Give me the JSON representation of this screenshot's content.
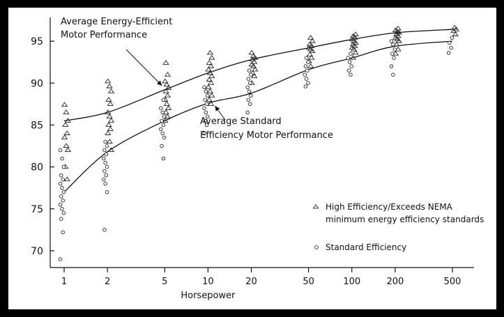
{
  "chart_data": {
    "type": "scatter",
    "title": "",
    "xlabel": "Horsepower",
    "ylabel": "",
    "x_scale": "log",
    "x_ticks": [
      1,
      2,
      5,
      10,
      20,
      50,
      100,
      200,
      500
    ],
    "x_tick_labels": [
      "1",
      "2",
      "5",
      "10",
      "20",
      "50",
      "100",
      "200",
      "500"
    ],
    "y_ticks": [
      70,
      75,
      80,
      85,
      90,
      95
    ],
    "y_tick_labels": [
      "70",
      "75",
      "80",
      "85",
      "90",
      "95"
    ],
    "ylim": [
      68,
      97.5
    ],
    "grid": false,
    "legend_position": "right-middle",
    "series": [
      {
        "name": "High Efficiency/Exceeds NEMA minimum energy efficiency standards",
        "marker": "triangle",
        "points": [
          [
            1,
            87.4
          ],
          [
            1,
            86.5
          ],
          [
            1,
            85.5
          ],
          [
            1,
            85.0
          ],
          [
            1,
            84.0
          ],
          [
            1,
            83.5
          ],
          [
            1,
            82.5
          ],
          [
            1,
            82.0
          ],
          [
            1,
            80.0
          ],
          [
            1,
            78.5
          ],
          [
            2,
            90.2
          ],
          [
            2,
            89.6
          ],
          [
            2,
            89.0
          ],
          [
            2,
            88.0
          ],
          [
            2,
            87.5
          ],
          [
            2,
            86.5
          ],
          [
            2,
            86.0
          ],
          [
            2,
            85.5
          ],
          [
            2,
            85.0
          ],
          [
            2,
            84.5
          ],
          [
            2,
            84.0
          ],
          [
            2,
            83.0
          ],
          [
            2,
            82.0
          ],
          [
            5,
            92.4
          ],
          [
            5,
            91.0
          ],
          [
            5,
            90.2
          ],
          [
            5,
            89.8
          ],
          [
            5,
            89.4
          ],
          [
            5,
            89.0
          ],
          [
            5,
            88.5
          ],
          [
            5,
            88.0
          ],
          [
            5,
            87.5
          ],
          [
            5,
            87.0
          ],
          [
            5,
            86.5
          ],
          [
            5,
            86.0
          ],
          [
            5,
            85.5
          ],
          [
            10,
            93.6
          ],
          [
            10,
            93.0
          ],
          [
            10,
            92.4
          ],
          [
            10,
            92.0
          ],
          [
            10,
            91.6
          ],
          [
            10,
            91.2
          ],
          [
            10,
            90.8
          ],
          [
            10,
            90.4
          ],
          [
            10,
            90.0
          ],
          [
            10,
            89.5
          ],
          [
            10,
            89.0
          ],
          [
            10,
            88.5
          ],
          [
            10,
            88.0
          ],
          [
            10,
            87.5
          ],
          [
            20,
            93.6
          ],
          [
            20,
            93.2
          ],
          [
            20,
            93.0
          ],
          [
            20,
            92.8
          ],
          [
            20,
            92.5
          ],
          [
            20,
            92.2
          ],
          [
            20,
            92.0
          ],
          [
            20,
            91.6
          ],
          [
            20,
            91.2
          ],
          [
            20,
            90.8
          ],
          [
            20,
            90.0
          ],
          [
            50,
            95.4
          ],
          [
            50,
            95.0
          ],
          [
            50,
            94.6
          ],
          [
            50,
            94.4
          ],
          [
            50,
            94.2
          ],
          [
            50,
            94.0
          ],
          [
            50,
            93.8
          ],
          [
            50,
            93.4
          ],
          [
            50,
            93.0
          ],
          [
            50,
            92.6
          ],
          [
            50,
            92.0
          ],
          [
            100,
            95.8
          ],
          [
            100,
            95.6
          ],
          [
            100,
            95.4
          ],
          [
            100,
            95.2
          ],
          [
            100,
            95.0
          ],
          [
            100,
            94.8
          ],
          [
            100,
            94.6
          ],
          [
            100,
            94.4
          ],
          [
            100,
            94.2
          ],
          [
            100,
            94.0
          ],
          [
            100,
            93.6
          ],
          [
            100,
            93.0
          ],
          [
            200,
            96.5
          ],
          [
            200,
            96.3
          ],
          [
            200,
            96.1
          ],
          [
            200,
            96.0
          ],
          [
            200,
            95.8
          ],
          [
            200,
            95.6
          ],
          [
            200,
            95.4
          ],
          [
            200,
            95.2
          ],
          [
            200,
            95.0
          ],
          [
            200,
            94.6
          ],
          [
            200,
            94.0
          ],
          [
            200,
            93.5
          ],
          [
            500,
            96.6
          ],
          [
            500,
            96.4
          ],
          [
            500,
            96.2
          ],
          [
            500,
            95.8
          ]
        ]
      },
      {
        "name": "Standard Efficiency",
        "marker": "circle",
        "points": [
          [
            1,
            82.0
          ],
          [
            1,
            81.0
          ],
          [
            1,
            80.0
          ],
          [
            1,
            79.0
          ],
          [
            1,
            78.5
          ],
          [
            1,
            78.0
          ],
          [
            1,
            77.5
          ],
          [
            1,
            77.0
          ],
          [
            1,
            76.5
          ],
          [
            1,
            76.0
          ],
          [
            1,
            75.5
          ],
          [
            1,
            75.0
          ],
          [
            1,
            74.5
          ],
          [
            1,
            73.8
          ],
          [
            1,
            72.2
          ],
          [
            1,
            69.0
          ],
          [
            2,
            83.0
          ],
          [
            2,
            82.5
          ],
          [
            2,
            82.0
          ],
          [
            2,
            81.5
          ],
          [
            2,
            81.0
          ],
          [
            2,
            80.5
          ],
          [
            2,
            80.0
          ],
          [
            2,
            79.5
          ],
          [
            2,
            79.0
          ],
          [
            2,
            78.5
          ],
          [
            2,
            78.0
          ],
          [
            2,
            77.0
          ],
          [
            2,
            72.5
          ],
          [
            5,
            88.0
          ],
          [
            5,
            87.0
          ],
          [
            5,
            86.5
          ],
          [
            5,
            86.0
          ],
          [
            5,
            85.5
          ],
          [
            5,
            85.0
          ],
          [
            5,
            84.5
          ],
          [
            5,
            84.0
          ],
          [
            5,
            83.5
          ],
          [
            5,
            82.5
          ],
          [
            5,
            81.0
          ],
          [
            10,
            89.5
          ],
          [
            10,
            89.0
          ],
          [
            10,
            88.5
          ],
          [
            10,
            88.0
          ],
          [
            10,
            87.5
          ],
          [
            10,
            87.0
          ],
          [
            10,
            86.5
          ],
          [
            10,
            86.0
          ],
          [
            10,
            85.5
          ],
          [
            10,
            85.0
          ],
          [
            10,
            84.0
          ],
          [
            20,
            91.5
          ],
          [
            20,
            91.0
          ],
          [
            20,
            90.5
          ],
          [
            20,
            90.0
          ],
          [
            20,
            89.5
          ],
          [
            20,
            89.0
          ],
          [
            20,
            88.5
          ],
          [
            20,
            88.0
          ],
          [
            20,
            87.5
          ],
          [
            20,
            86.5
          ],
          [
            50,
            93.0
          ],
          [
            50,
            92.5
          ],
          [
            50,
            92.0
          ],
          [
            50,
            91.5
          ],
          [
            50,
            91.0
          ],
          [
            50,
            90.5
          ],
          [
            50,
            90.0
          ],
          [
            50,
            89.6
          ],
          [
            100,
            93.5
          ],
          [
            100,
            93.0
          ],
          [
            100,
            92.5
          ],
          [
            100,
            92.0
          ],
          [
            100,
            91.5
          ],
          [
            100,
            91.0
          ],
          [
            200,
            95.0
          ],
          [
            200,
            94.6
          ],
          [
            200,
            94.0
          ],
          [
            200,
            93.5
          ],
          [
            200,
            93.0
          ],
          [
            200,
            92.0
          ],
          [
            200,
            91.0
          ],
          [
            500,
            95.4
          ],
          [
            500,
            94.8
          ],
          [
            500,
            94.2
          ],
          [
            500,
            93.6
          ]
        ]
      }
    ],
    "trend_curves": [
      {
        "series": "High Efficiency/Exceeds NEMA minimum energy efficiency standards",
        "points": [
          [
            1,
            85.5
          ],
          [
            2,
            86.5
          ],
          [
            5,
            89.2
          ],
          [
            10,
            91.2
          ],
          [
            20,
            92.8
          ],
          [
            50,
            94.2
          ],
          [
            100,
            95.2
          ],
          [
            200,
            96.0
          ],
          [
            500,
            96.4
          ]
        ]
      },
      {
        "series": "Standard Efficiency",
        "points": [
          [
            1,
            77.0
          ],
          [
            2,
            81.8
          ],
          [
            5,
            85.5
          ],
          [
            10,
            87.6
          ],
          [
            20,
            88.8
          ],
          [
            50,
            91.6
          ],
          [
            100,
            93.0
          ],
          [
            200,
            94.4
          ],
          [
            500,
            95.0
          ]
        ]
      }
    ],
    "annotations": [
      {
        "lines": [
          "Average Energy-Efficient",
          "Motor Performance"
        ],
        "points_to": [
          5,
          89.2
        ]
      },
      {
        "lines": [
          "Average Standard",
          "Efficiency Motor Performance"
        ],
        "points_to": [
          10,
          87.6
        ]
      }
    ],
    "legend": [
      {
        "symbol": "Δ",
        "lines": [
          "High Efficiency/Exceeds NEMA",
          "minimum energy efficiency standards"
        ]
      },
      {
        "symbol": "o",
        "lines": [
          "Standard Efficiency"
        ]
      }
    ]
  }
}
